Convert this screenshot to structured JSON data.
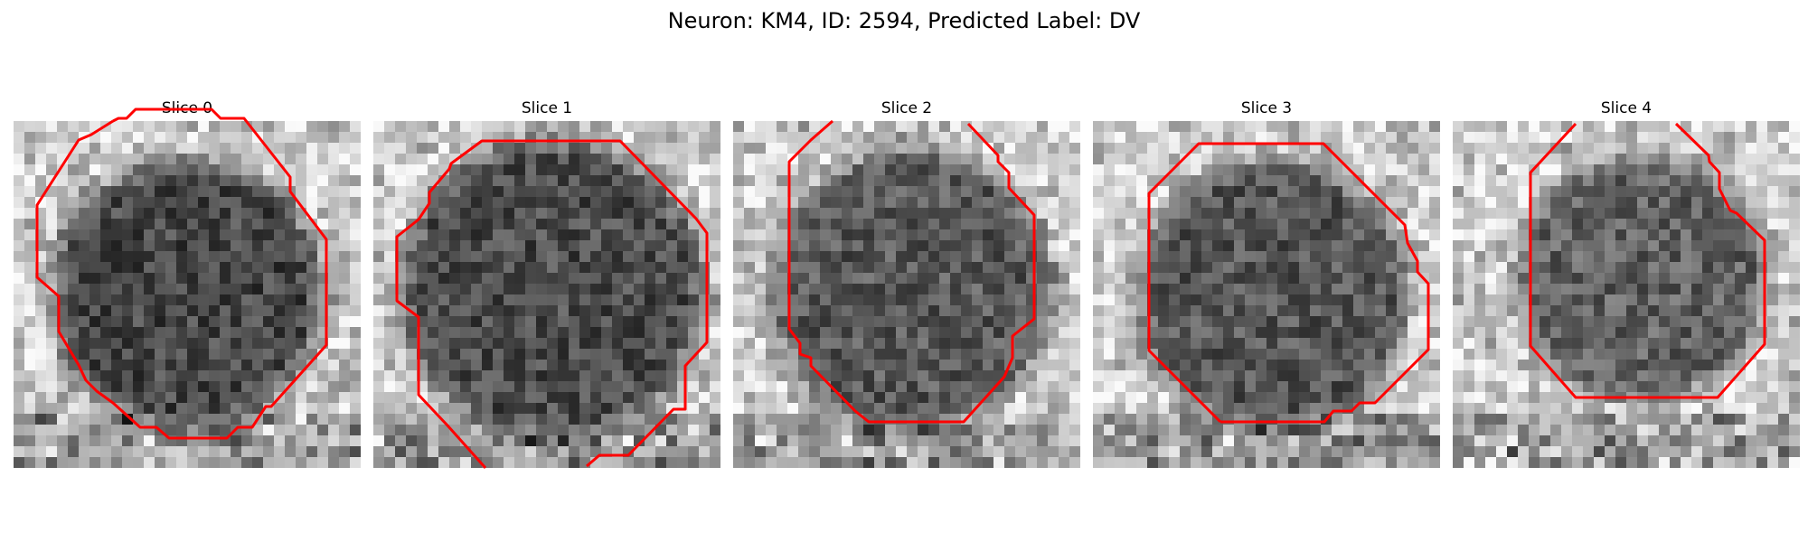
{
  "figure": {
    "title": "Neuron: KM4, ID: 2594, Predicted Label: DV"
  },
  "contour_color": "#ff0000",
  "slices": [
    {
      "title": "Slice 0"
    },
    {
      "title": "Slice 1"
    },
    {
      "title": "Slice 2"
    },
    {
      "title": "Slice 3"
    },
    {
      "title": "Slice 4"
    }
  ]
}
